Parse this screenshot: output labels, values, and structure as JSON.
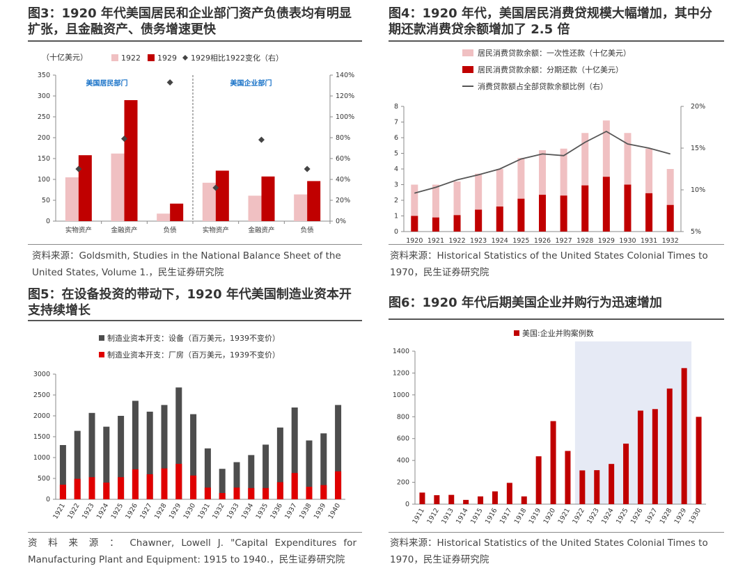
{
  "colors": {
    "red": "#c00000",
    "pink": "#f0c0c2",
    "gray": "#4d4d4d",
    "shade": "#e6eaf5",
    "line": "#555555"
  },
  "fig3": {
    "title": "图3：1920 年代美国居民和企业部门资产负债表均有明显扩张，且金融资产、债务增速更快",
    "source": "资料来源：Goldsmith, Studies in the National Balance Sheet of the United States, Volume 1.，民生证券研究院"
  },
  "fig4": {
    "title": "图4：1920 年代，美国居民消费贷规模大幅增加，其中分期还款消费贷余额增加了 2.5 倍",
    "source": "资料来源：Historical Statistics of the United States Colonial Times to 1970，民生证券研究院"
  },
  "fig5": {
    "title": "图5：在设备投资的带动下，1920 年代美国制造业资本开支持续增长",
    "source": "资 料 来 源 ： Chawner, Lowell J. \"Capital Expenditures for Manufacturing Plant and Equipment: 1915 to 1940.，民生证券研究院"
  },
  "fig6": {
    "title": "图6：1920 年代后期美国企业并购行为迅速增加",
    "source": "资料来源：Historical Statistics of the United States Colonial Times to 1970，民生证券研究院"
  },
  "chart_data": [
    {
      "type": "bar",
      "unit": "（十亿美元）",
      "categories": [
        "实物资产",
        "金融资产",
        "负债",
        "实物资产",
        "金融资产",
        "负债"
      ],
      "groups": [
        "美国居民部门",
        "美国企业部门"
      ],
      "series": [
        {
          "name": "1922",
          "values": [
            105,
            162,
            18,
            92,
            61,
            64
          ]
        },
        {
          "name": "1929",
          "values": [
            158,
            290,
            42,
            121,
            107,
            96
          ]
        },
        {
          "name": "1929相比1922变化（右）",
          "values": [
            50,
            79,
            133,
            32,
            78,
            50
          ]
        }
      ],
      "yticks": [
        "0",
        "50",
        "100",
        "150",
        "200",
        "250",
        "300",
        "350"
      ],
      "y2ticks": [
        "0%",
        "20%",
        "40%",
        "60%",
        "80%",
        "100%",
        "120%",
        "140%"
      ],
      "ylim": [
        0,
        350
      ],
      "y2lim": [
        0,
        140
      ]
    },
    {
      "type": "bar",
      "categories": [
        "1920",
        "1921",
        "1922",
        "1923",
        "1924",
        "1925",
        "1926",
        "1927",
        "1928",
        "1929",
        "1930",
        "1931",
        "1932"
      ],
      "series": [
        {
          "name": "居民消费贷款余额：一次性还款（十亿美元）",
          "values": [
            3.0,
            3.0,
            3.2,
            3.7,
            4.0,
            4.7,
            5.2,
            5.3,
            6.3,
            7.1,
            6.3,
            5.3,
            4.0
          ]
        },
        {
          "name": "居民消费贷款余额：分期还款（十亿美元）",
          "values": [
            1.0,
            0.9,
            1.05,
            1.4,
            1.6,
            2.1,
            2.35,
            2.3,
            2.95,
            3.5,
            3.0,
            2.45,
            1.7
          ]
        },
        {
          "name": "消费贷款额占全部贷款余额比例（右）",
          "values": [
            9.6,
            10.3,
            11.2,
            11.8,
            12.5,
            13.7,
            14.3,
            14.1,
            15.7,
            17.0,
            15.5,
            15.0,
            14.3
          ]
        }
      ],
      "yticks": [
        "0",
        "1",
        "2",
        "3",
        "4",
        "5",
        "6",
        "7",
        "8"
      ],
      "y2ticks": [
        "5%",
        "10%",
        "15%",
        "20%"
      ],
      "ylim": [
        0,
        8
      ],
      "y2lim": [
        5,
        20
      ]
    },
    {
      "type": "bar",
      "categories": [
        "1921",
        "1922",
        "1923",
        "1924",
        "1925",
        "1926",
        "1927",
        "1928",
        "1929",
        "1930",
        "1931",
        "1932",
        "1933",
        "1934",
        "1935",
        "1936",
        "1937",
        "1938",
        "1939",
        "1940"
      ],
      "series": [
        {
          "name": "制造业资本开支：设备（百万美元，1939不变价）",
          "values": [
            1300,
            1640,
            2070,
            1740,
            2000,
            2360,
            2100,
            2260,
            2680,
            2040,
            1220,
            730,
            890,
            1060,
            1310,
            1720,
            2200,
            1410,
            1580,
            2260
          ]
        },
        {
          "name": "制造业资本开支：厂房（百万美元，1939不变价）",
          "values": [
            350,
            490,
            530,
            400,
            530,
            720,
            600,
            740,
            850,
            570,
            280,
            150,
            280,
            270,
            270,
            410,
            630,
            300,
            340,
            670
          ]
        }
      ],
      "yticks": [
        "0",
        "500",
        "1000",
        "1500",
        "2000",
        "2500",
        "3000"
      ],
      "ylim": [
        0,
        3000
      ]
    },
    {
      "type": "bar",
      "categories": [
        "1911",
        "1912",
        "1913",
        "1914",
        "1915",
        "1916",
        "1917",
        "1918",
        "1919",
        "1920",
        "1921",
        "1922",
        "1923",
        "1924",
        "1925",
        "1926",
        "1927",
        "1928",
        "1929",
        "1930"
      ],
      "series": [
        {
          "name": "美国:企业并购案例数",
          "values": [
            106,
            82,
            85,
            39,
            71,
            117,
            195,
            71,
            438,
            760,
            487,
            309,
            311,
            368,
            554,
            856,
            870,
            1058,
            1245,
            799
          ]
        }
      ],
      "yticks": [
        "0",
        "200",
        "400",
        "600",
        "800",
        "1000",
        "1200",
        "1400"
      ],
      "ylim": [
        0,
        1400
      ],
      "shaded_range": [
        "1922",
        "1929"
      ]
    }
  ]
}
